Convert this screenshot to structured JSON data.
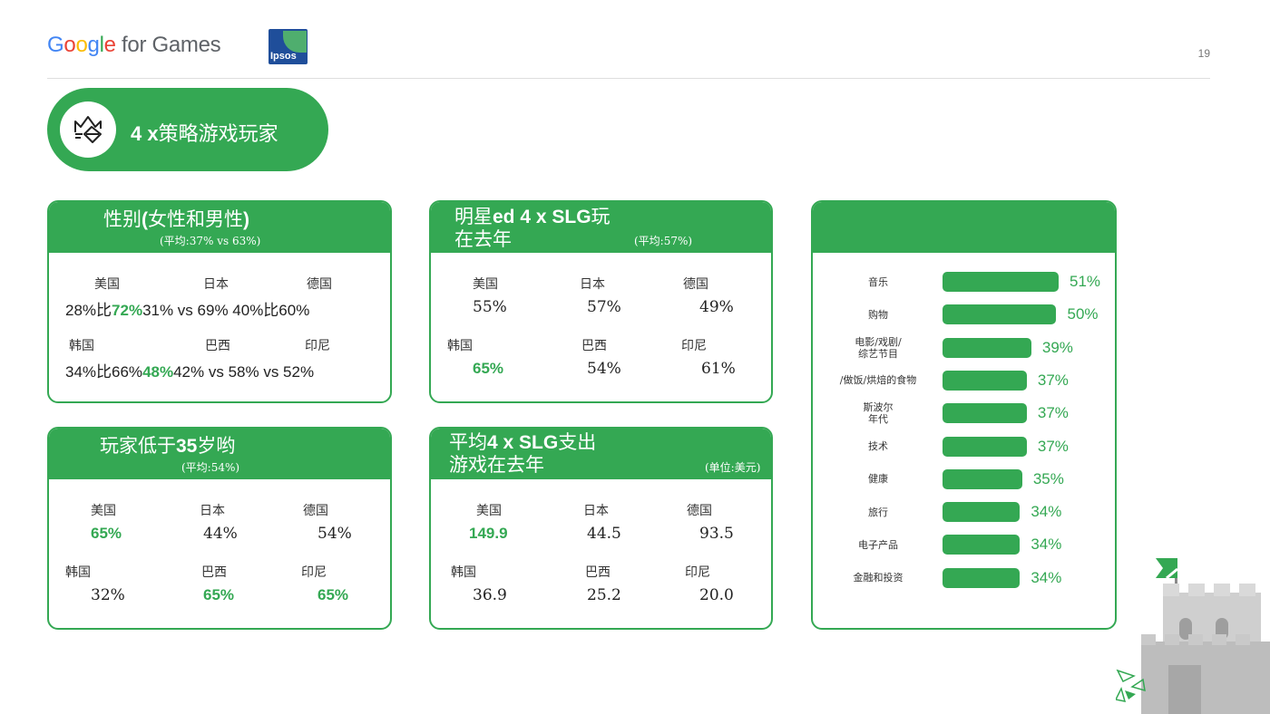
{
  "brand": {
    "g1": "G",
    "g2": "o",
    "g3": "o",
    "g4": "g",
    "g5": "l",
    "g6": "e",
    "rest": " for Games",
    "partner": "Ipsos"
  },
  "page_number": "19",
  "title": {
    "prefix": "4 x",
    "text": "策略游戏玩家"
  },
  "gender_card": {
    "title_a": "性别",
    "title_b": "(",
    "title_c": "女性和男性",
    "title_d": ")",
    "subtitle": "(平均:37% vs 63%)",
    "row1_labels": [
      "美国",
      "日本",
      "德国"
    ],
    "row1_line": {
      "a": "28%比",
      "b": "72%",
      "c": "31% vs 69% 40%比60%"
    },
    "row2_labels": [
      "韩国",
      "巴西",
      "印尼"
    ],
    "row2_line": {
      "a": "34%比66%",
      "b": "48%",
      "c": "42% vs 58% vs 52%"
    }
  },
  "star_card": {
    "title_a": "明星",
    "title_b": "ed 4 x SLG",
    "title_c": "玩",
    "title_line2": "在去年",
    "subtitle": "(平均:57%)",
    "labels": [
      "美国",
      "日本",
      "德国",
      "韩国",
      "巴西",
      "印尼"
    ],
    "values": [
      "55%",
      "57%",
      "49%",
      "65%",
      "54%",
      "61%"
    ]
  },
  "age_card": {
    "title_a": "玩家低于",
    "title_b": "35",
    "title_c": "岁哟",
    "subtitle": "(平均:54%)",
    "labels": [
      "美国",
      "日本",
      "德国",
      "韩国",
      "巴西",
      "印尼"
    ],
    "values": [
      "65%",
      "44%",
      "54%",
      "32%",
      "65%",
      "65%"
    ]
  },
  "spend_card": {
    "title_a": "平均",
    "title_b": "4 x SLG",
    "title_c": "支出",
    "title_line2": "游戏在去年",
    "subtitle": "(单位:美元)",
    "labels": [
      "美国",
      "日本",
      "德国",
      "韩国",
      "巴西",
      "印尼"
    ],
    "values": [
      "149.9",
      "44.5",
      "93.5",
      "36.9",
      "25.2",
      "20.0"
    ]
  },
  "chart_data": {
    "type": "bar",
    "orientation": "horizontal",
    "categories": [
      "音乐",
      "购物",
      "电影/戏剧/综艺节目",
      "/做饭/烘焙的食物",
      "斯波尔年代",
      "技术",
      "健康",
      "旅行",
      "电子产品",
      "金融和投资"
    ],
    "category_display": [
      "音乐",
      "购物",
      "电影/戏剧/\n综艺节目",
      "/做饭/烘焙的食物",
      "斯波尔\n年代",
      "技术",
      "健康",
      "旅行",
      "电子产品",
      "金融和投资"
    ],
    "values": [
      51,
      50,
      39,
      37,
      37,
      37,
      35,
      34,
      34,
      34
    ],
    "value_labels": [
      "51%",
      "50%",
      "39%",
      "37%",
      "37%",
      "37%",
      "35%",
      "34%",
      "34%",
      "34%"
    ],
    "bar_color": "#34A853"
  },
  "colors": {
    "accent": "#34A853",
    "navy": "#1f4e9a"
  }
}
